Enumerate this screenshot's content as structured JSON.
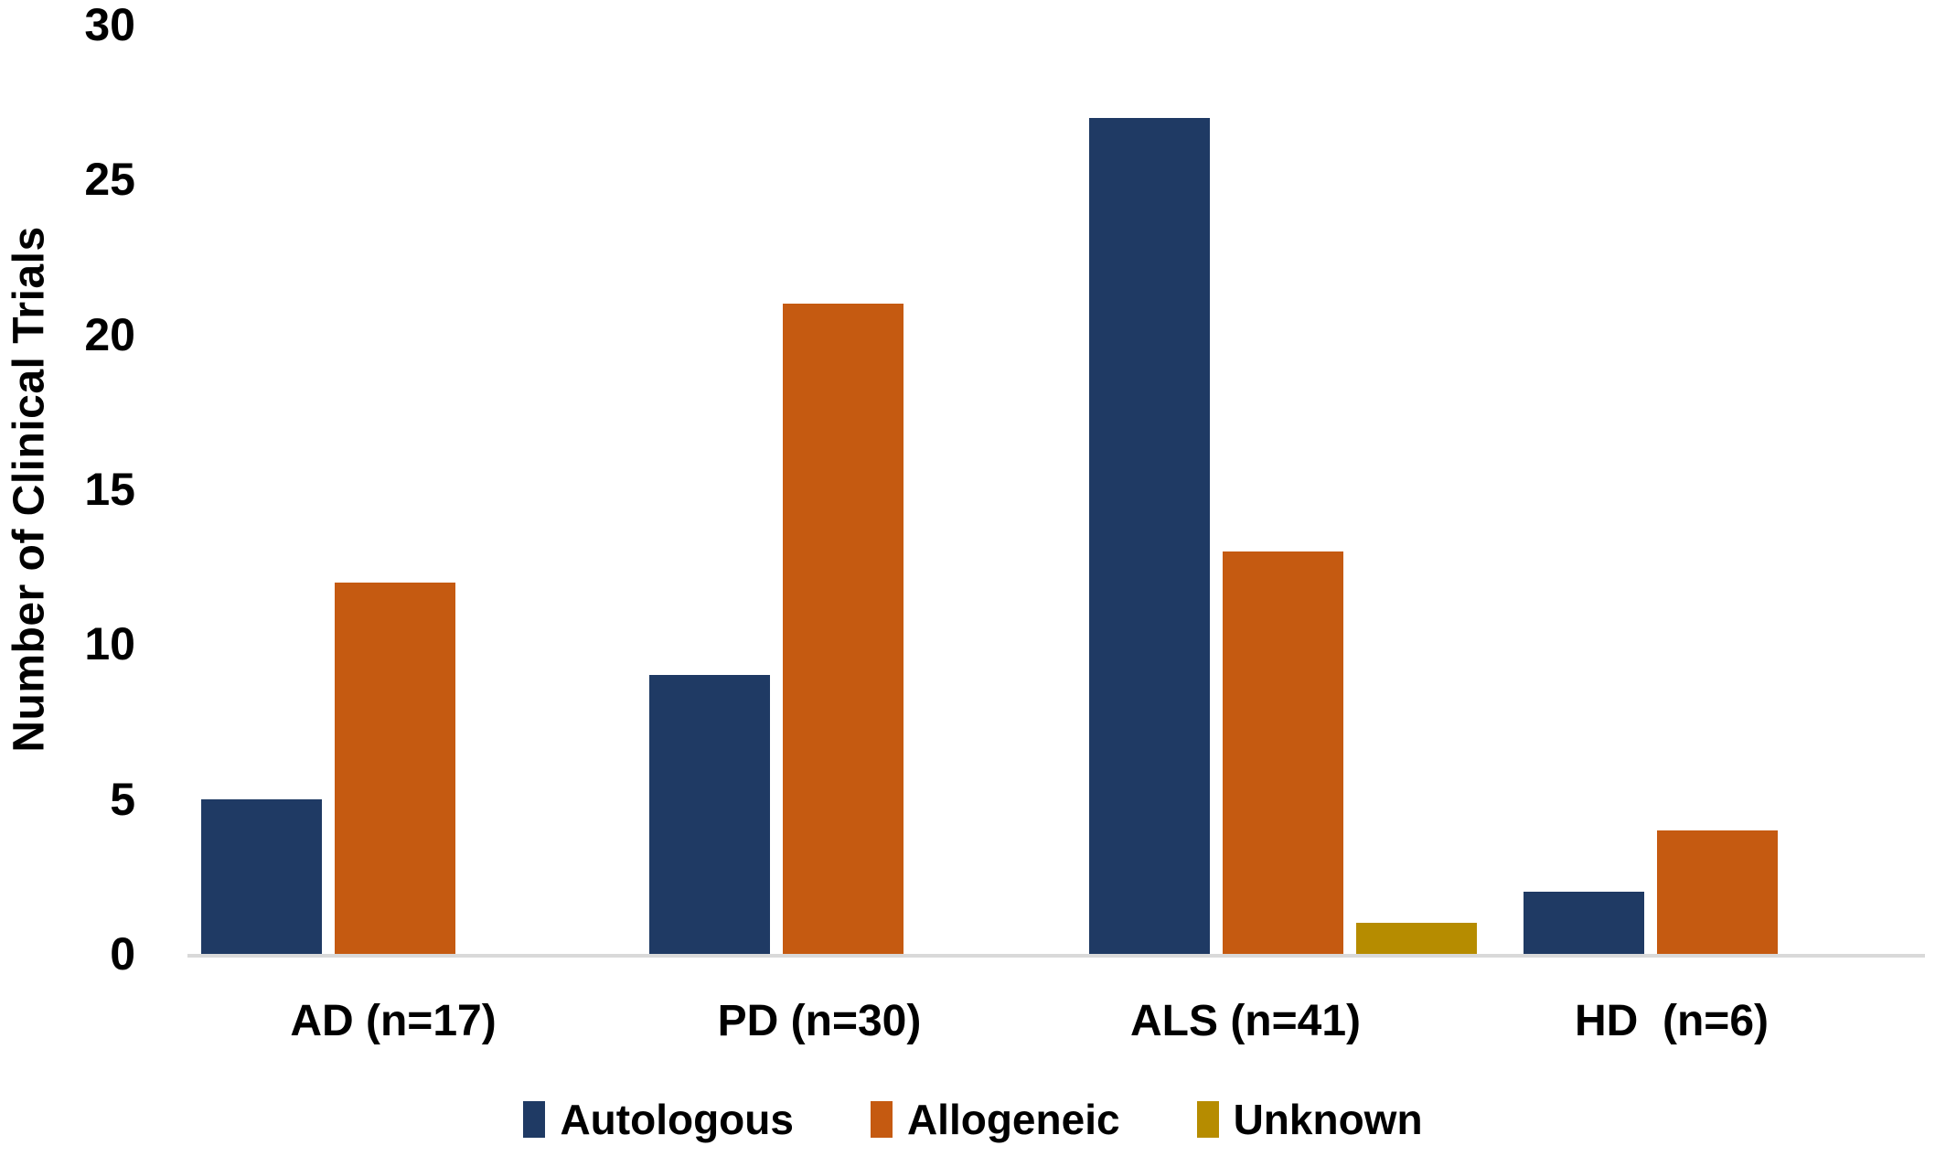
{
  "chart_data": {
    "type": "bar",
    "title": "",
    "ylabel": "Number of Clinical Trials",
    "xlabel": "",
    "ylim": [
      0,
      30
    ],
    "yticks": [
      0,
      5,
      10,
      15,
      20,
      25,
      30
    ],
    "grid": false,
    "legend_position": "bottom",
    "background_color": "#ffffff",
    "axis_line_color": "#d9d9d9",
    "text_color": "#000000",
    "categories": [
      "AD (n=17)",
      "PD (n=30)",
      "ALS (n=41)",
      "HD  (n=6)"
    ],
    "series": [
      {
        "name": "Autologous",
        "color": "#1f3a64",
        "values": [
          5,
          9,
          27,
          2
        ]
      },
      {
        "name": "Allogeneic",
        "color": "#c55a11",
        "values": [
          12,
          21,
          13,
          4
        ]
      },
      {
        "name": "Unknown",
        "color": "#b68c00",
        "values": [
          null,
          null,
          1,
          null
        ]
      }
    ]
  }
}
